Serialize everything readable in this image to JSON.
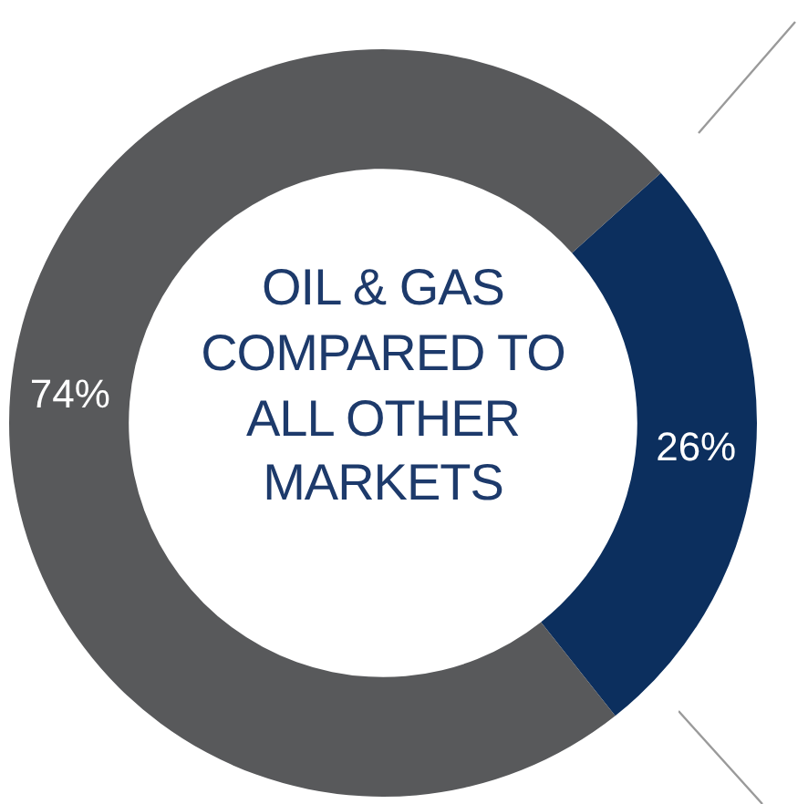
{
  "chart_data": {
    "type": "donut",
    "title": "OIL & GAS COMPARED TO ALL OTHER MARKETS",
    "categories": [
      null,
      null
    ],
    "values": [
      26,
      74
    ],
    "colors": [
      "#0c2f5e",
      "#58595b"
    ],
    "value_labels": [
      "26%",
      "74%"
    ],
    "legend": false
  }
}
